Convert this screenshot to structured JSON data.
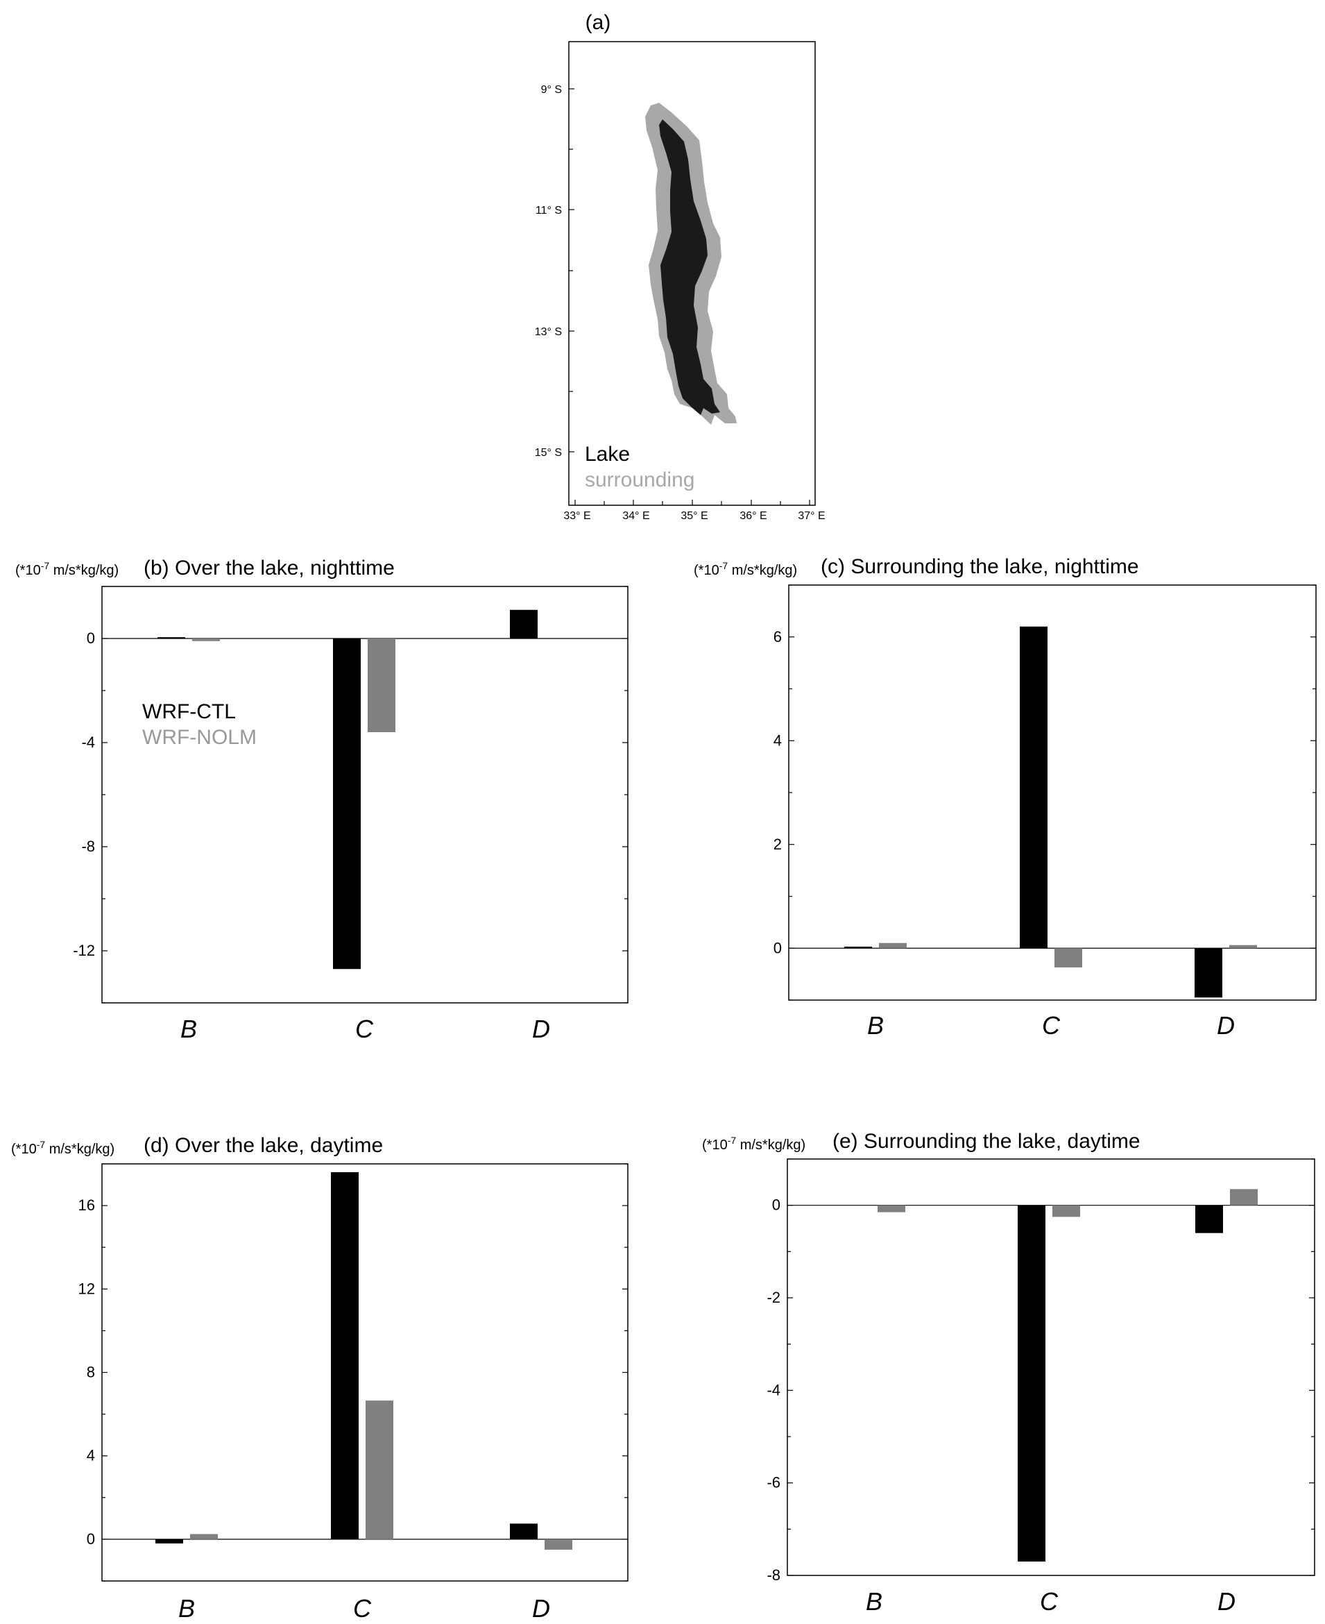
{
  "map": {
    "label": "(a)",
    "lat_ticks": [
      "9° S",
      "11° S",
      "13° S",
      "15° S"
    ],
    "lon_ticks": [
      "33° E",
      "34° E",
      "35° E",
      "36° E",
      "37° E"
    ],
    "legend": [
      {
        "name": "Lake",
        "color": "#000000"
      },
      {
        "name": "surrounding",
        "color": "#a8a8a8"
      }
    ]
  },
  "colors": {
    "ctl": "#000000",
    "nolm": "#808080",
    "lake": "#1a1a1a",
    "surrounding": "#a8a8a8"
  },
  "chart_data": [
    {
      "type": "bar",
      "unit": "(*10",
      "unit_exp": "-7",
      "unit_rest": " m/s*kg/kg)",
      "title": "(b) Over the lake, nighttime",
      "categories": [
        "B",
        "C",
        "D"
      ],
      "ylim": [
        -14,
        2
      ],
      "yticks": [
        0,
        -4,
        -8,
        -12
      ],
      "series": [
        {
          "name": "WRF-CTL",
          "values": [
            0.05,
            -12.7,
            1.1
          ]
        },
        {
          "name": "WRF-NOLM",
          "values": [
            -0.1,
            -3.6,
            0
          ]
        }
      ],
      "legend": [
        "WRF-CTL",
        "WRF-NOLM"
      ],
      "legend_position": "upper-left"
    },
    {
      "type": "bar",
      "unit": "(*10",
      "unit_exp": "-7",
      "unit_rest": " m/s*kg/kg)",
      "title": "(c) Surrounding the lake, nighttime",
      "categories": [
        "B",
        "C",
        "D"
      ],
      "ylim": [
        -1,
        7
      ],
      "yticks": [
        0,
        2,
        4,
        6
      ],
      "series": [
        {
          "name": "WRF-CTL",
          "values": [
            0.03,
            6.2,
            -0.95
          ]
        },
        {
          "name": "WRF-NOLM",
          "values": [
            0.1,
            -0.37,
            0.06
          ]
        }
      ]
    },
    {
      "type": "bar",
      "unit": "(*10",
      "unit_exp": "-7",
      "unit_rest": " m/s*kg/kg)",
      "title": "(d) Over the lake, daytime",
      "categories": [
        "B",
        "C",
        "D"
      ],
      "ylim": [
        -2,
        18
      ],
      "yticks": [
        0,
        4,
        8,
        12,
        16
      ],
      "series": [
        {
          "name": "WRF-CTL",
          "values": [
            -0.2,
            17.6,
            0.75
          ]
        },
        {
          "name": "WRF-NOLM",
          "values": [
            0.25,
            6.65,
            -0.5
          ]
        }
      ]
    },
    {
      "type": "bar",
      "unit": "(*10",
      "unit_exp": "-7",
      "unit_rest": " m/s*kg/kg)",
      "title": "(e) Surrounding the lake, daytime",
      "categories": [
        "B",
        "C",
        "D"
      ],
      "ylim": [
        -8,
        1
      ],
      "yticks": [
        0,
        -2,
        -4,
        -6,
        -8
      ],
      "series": [
        {
          "name": "WRF-CTL",
          "values": [
            0,
            -7.7,
            -0.6
          ]
        },
        {
          "name": "WRF-NOLM",
          "values": [
            -0.15,
            -0.25,
            0.35
          ]
        }
      ]
    }
  ]
}
